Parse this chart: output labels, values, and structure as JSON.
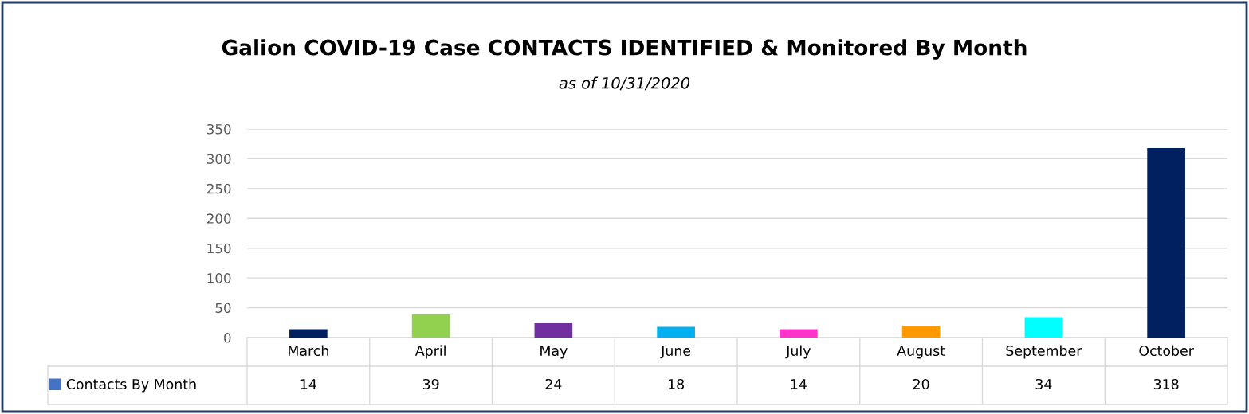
{
  "chart_data": {
    "type": "bar",
    "title": "Galion COVID-19 Case CONTACTS IDENTIFIED & Monitored By Month",
    "subtitle": "as of 10/31/2020",
    "categories": [
      "March",
      "April",
      "May",
      "June",
      "July",
      "August",
      "September",
      "October"
    ],
    "series": [
      {
        "name": "Contacts By Month",
        "color": "#4472c4",
        "values": [
          14,
          39,
          24,
          18,
          14,
          20,
          34,
          318
        ],
        "colors": [
          "#002060",
          "#92d050",
          "#7030a0",
          "#00b0f0",
          "#ff33cc",
          "#ff9900",
          "#00ffff",
          "#002060"
        ]
      }
    ],
    "legend": "bottom left",
    "ylim": [
      0,
      350
    ],
    "yticks": [
      0,
      50,
      100,
      150,
      200,
      250,
      300,
      350
    ],
    "grid": "y",
    "data_labels": true
  }
}
